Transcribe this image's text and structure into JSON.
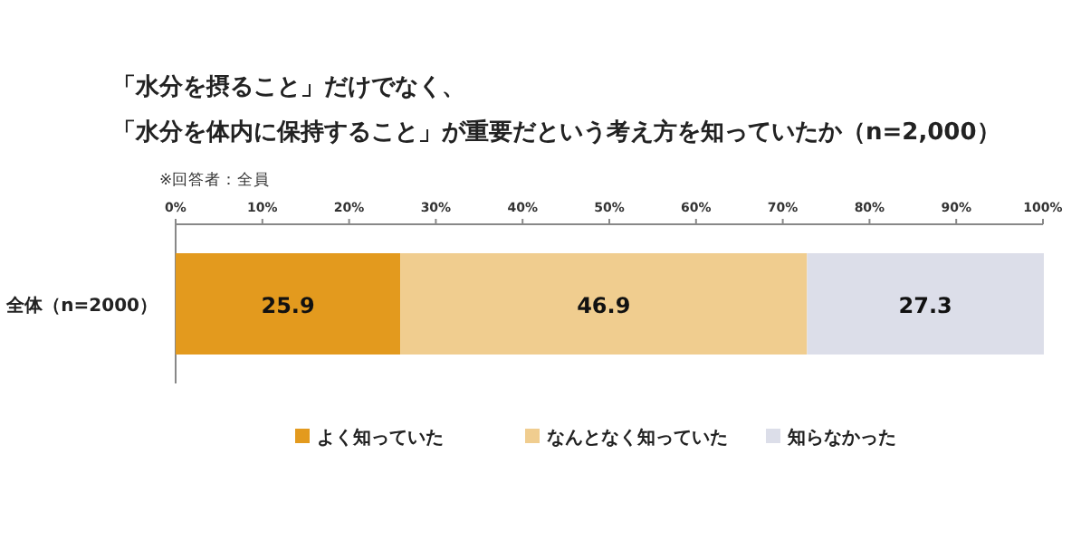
{
  "chart_data": {
    "type": "bar",
    "orientation": "horizontal",
    "stacked": true,
    "title": "「水分を摂ること」だけでなく、「水分を体内に保持すること」が重要だという考え方を知っていたか（n=2,000）",
    "subtitle": "※回答者：全員",
    "categories": [
      "全体（n=2000）"
    ],
    "series": [
      {
        "name": "よく知っていた",
        "color": "#e39a1e",
        "values": [
          25.9
        ]
      },
      {
        "name": "なんとなく知っていた",
        "color": "#f0cd8f",
        "values": [
          46.9
        ]
      },
      {
        "name": "知らなかった",
        "color": "#dcdee9",
        "values": [
          27.3
        ]
      }
    ],
    "xlim": [
      0,
      100
    ],
    "xticks": [
      {
        "value": 0,
        "label": "0%"
      },
      {
        "value": 10,
        "label": "10%"
      },
      {
        "value": 20,
        "label": "20%"
      },
      {
        "value": 30,
        "label": "30%"
      },
      {
        "value": 40,
        "label": "40%"
      },
      {
        "value": 50,
        "label": "50%"
      },
      {
        "value": 60,
        "label": "60%"
      },
      {
        "value": 70,
        "label": "70%"
      },
      {
        "value": 80,
        "label": "80%"
      },
      {
        "value": 90,
        "label": "90%"
      },
      {
        "value": 100,
        "label": "100%"
      }
    ],
    "data_labels": true,
    "legend": "bottom"
  }
}
